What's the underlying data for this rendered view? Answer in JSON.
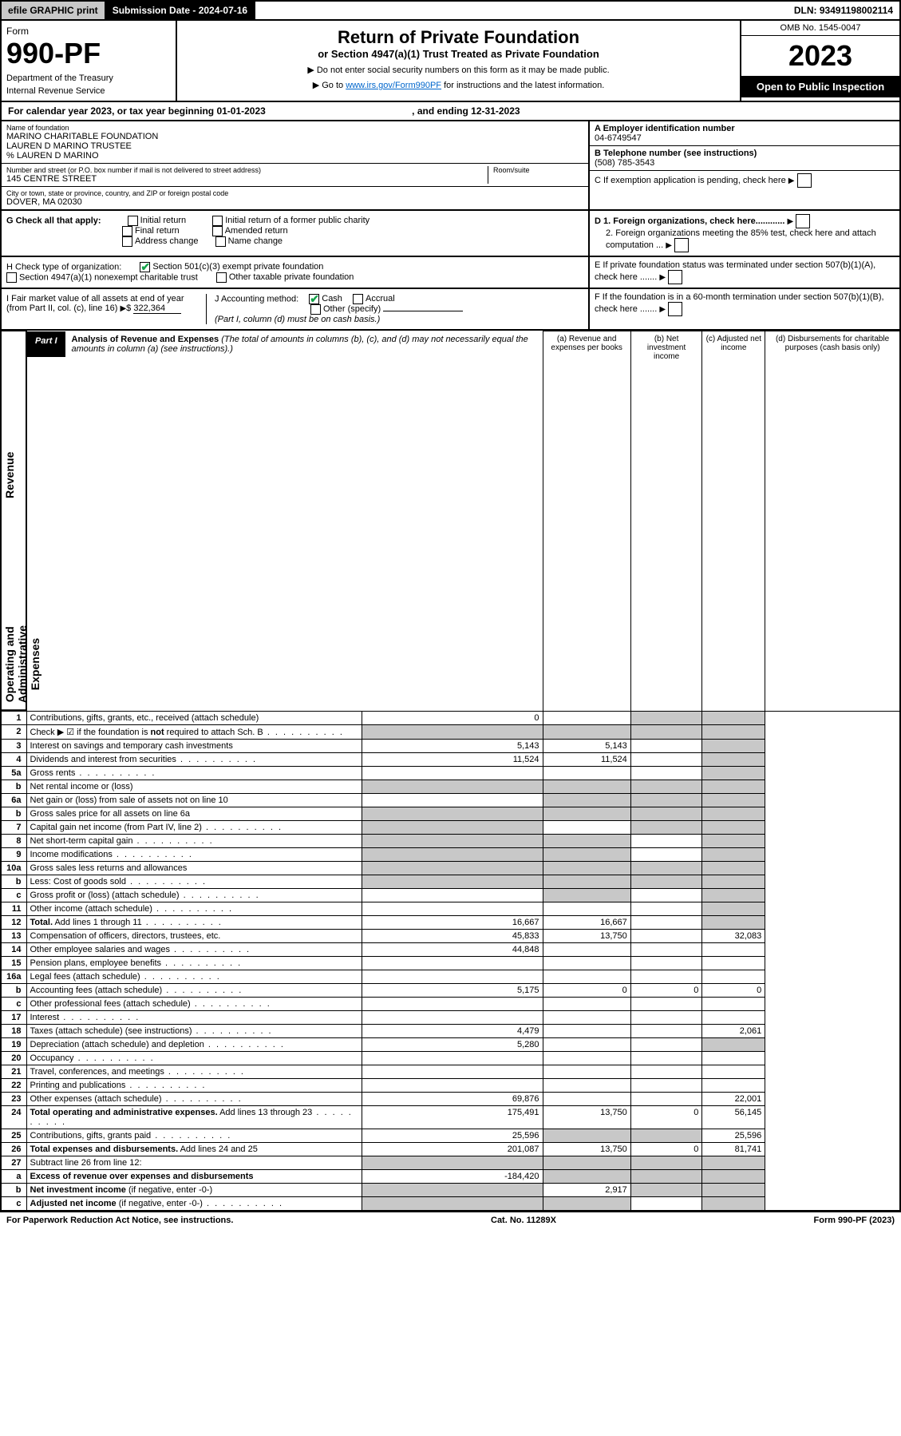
{
  "topbar": {
    "efile": "efile GRAPHIC print",
    "subdate_label": "Submission Date - 2024-07-16",
    "dln": "DLN: 93491198002114"
  },
  "header": {
    "form": "Form",
    "formno": "990-PF",
    "dept": "Department of the Treasury",
    "irs": "Internal Revenue Service",
    "title": "Return of Private Foundation",
    "subtitle": "or Section 4947(a)(1) Trust Treated as Private Foundation",
    "note1": "▶ Do not enter social security numbers on this form as it may be made public.",
    "note2_pre": "▶ Go to ",
    "note2_link": "www.irs.gov/Form990PF",
    "note2_post": " for instructions and the latest information.",
    "omb": "OMB No. 1545-0047",
    "year": "2023",
    "inspect": "Open to Public Inspection"
  },
  "cal": {
    "text": "For calendar year 2023, or tax year beginning 01-01-2023",
    "ending": ", and ending 12-31-2023"
  },
  "info": {
    "name_label": "Name of foundation",
    "name1": "MARINO CHARITABLE FOUNDATION",
    "name2": "LAUREN D MARINO TRUSTEE",
    "name3": "% LAUREN D MARINO",
    "addr_label": "Number and street (or P.O. box number if mail is not delivered to street address)",
    "room_label": "Room/suite",
    "addr": "145 CENTRE STREET",
    "city_label": "City or town, state or province, country, and ZIP or foreign postal code",
    "city": "DOVER, MA  02030",
    "ein_label": "A Employer identification number",
    "ein": "04-6749547",
    "phone_label": "B Telephone number (see instructions)",
    "phone": "(508) 785-3543",
    "c": "C If exemption application is pending, check here",
    "d1": "D 1. Foreign organizations, check here............",
    "d2": "2. Foreign organizations meeting the 85% test, check here and attach computation ...",
    "e": "E  If private foundation status was terminated under section 507(b)(1)(A), check here .......",
    "f": "F  If the foundation is in a 60-month termination under section 507(b)(1)(B), check here .......",
    "g": "G Check all that apply:",
    "g_initial": "Initial return",
    "g_initial_former": "Initial return of a former public charity",
    "g_final": "Final return",
    "g_amended": "Amended return",
    "g_address": "Address change",
    "g_name": "Name change",
    "h": "H Check type of organization:",
    "h_501c3": "Section 501(c)(3) exempt private foundation",
    "h_4947": "Section 4947(a)(1) nonexempt charitable trust",
    "h_other": "Other taxable private foundation",
    "i_label": "I Fair market value of all assets at end of year (from Part II, col. (c), line 16)",
    "i_val": "322,364",
    "j": "J Accounting method:",
    "j_cash": "Cash",
    "j_accrual": "Accrual",
    "j_other": "Other (specify)",
    "j_note": "(Part I, column (d) must be on cash basis.)"
  },
  "part1": {
    "label": "Part I",
    "title": "Analysis of Revenue and Expenses",
    "desc": "(The total of amounts in columns (b), (c), and (d) may not necessarily equal the amounts in column (a) (see instructions).)",
    "col_a": "(a) Revenue and expenses per books",
    "col_b": "(b) Net investment income",
    "col_c": "(c) Adjusted net income",
    "col_d": "(d) Disbursements for charitable purposes (cash basis only)",
    "side_rev": "Revenue",
    "side_exp": "Operating and Administrative Expenses"
  },
  "rows": [
    {
      "n": "1",
      "d": "shade",
      "a": "0",
      "b": "",
      "c": "shade"
    },
    {
      "n": "2",
      "d": "shade",
      "dots": true,
      "a": "shade",
      "b": "shade",
      "c": "shade"
    },
    {
      "n": "3",
      "d": "shade",
      "a": "5,143",
      "b": "5,143",
      "c": ""
    },
    {
      "n": "4",
      "d": "shade",
      "dots": true,
      "a": "11,524",
      "b": "11,524",
      "c": ""
    },
    {
      "n": "5a",
      "d": "shade",
      "dots": true,
      "a": "",
      "b": "",
      "c": ""
    },
    {
      "n": "b",
      "d": "shade",
      "a": "shade",
      "b": "shade",
      "c": "shade"
    },
    {
      "n": "6a",
      "d": "shade",
      "a": "",
      "b": "shade",
      "c": "shade"
    },
    {
      "n": "b",
      "d": "shade",
      "a": "shade",
      "b": "shade",
      "c": "shade"
    },
    {
      "n": "7",
      "d": "shade",
      "dots": true,
      "a": "shade",
      "b": "",
      "c": "shade"
    },
    {
      "n": "8",
      "d": "shade",
      "dots": true,
      "a": "shade",
      "b": "shade",
      "c": ""
    },
    {
      "n": "9",
      "d": "shade",
      "dots": true,
      "a": "shade",
      "b": "shade",
      "c": ""
    },
    {
      "n": "10a",
      "d": "shade",
      "a": "shade",
      "b": "shade",
      "c": "shade"
    },
    {
      "n": "b",
      "d": "shade",
      "dots": true,
      "a": "shade",
      "b": "shade",
      "c": "shade"
    },
    {
      "n": "c",
      "d": "shade",
      "dots": true,
      "a": "",
      "b": "shade",
      "c": ""
    },
    {
      "n": "11",
      "d": "shade",
      "dots": true,
      "a": "",
      "b": "",
      "c": ""
    },
    {
      "n": "12",
      "d": "shade",
      "dots": true,
      "bold": true,
      "a": "16,667",
      "b": "16,667",
      "c": ""
    },
    {
      "n": "13",
      "d": "32,083",
      "a": "45,833",
      "b": "13,750",
      "c": ""
    },
    {
      "n": "14",
      "d": "",
      "dots": true,
      "a": "44,848",
      "b": "",
      "c": ""
    },
    {
      "n": "15",
      "d": "",
      "dots": true,
      "a": "",
      "b": "",
      "c": ""
    },
    {
      "n": "16a",
      "d": "",
      "dots": true,
      "a": "",
      "b": "",
      "c": ""
    },
    {
      "n": "b",
      "d": "0",
      "dots": true,
      "a": "5,175",
      "b": "0",
      "c": "0"
    },
    {
      "n": "c",
      "d": "",
      "dots": true,
      "a": "",
      "b": "",
      "c": ""
    },
    {
      "n": "17",
      "d": "",
      "dots": true,
      "a": "",
      "b": "",
      "c": ""
    },
    {
      "n": "18",
      "d": "2,061",
      "dots": true,
      "a": "4,479",
      "b": "",
      "c": ""
    },
    {
      "n": "19",
      "d": "shade",
      "dots": true,
      "a": "5,280",
      "b": "",
      "c": ""
    },
    {
      "n": "20",
      "d": "",
      "dots": true,
      "a": "",
      "b": "",
      "c": ""
    },
    {
      "n": "21",
      "d": "",
      "dots": true,
      "a": "",
      "b": "",
      "c": ""
    },
    {
      "n": "22",
      "d": "",
      "dots": true,
      "a": "",
      "b": "",
      "c": ""
    },
    {
      "n": "23",
      "d": "22,001",
      "dots": true,
      "a": "69,876",
      "b": "",
      "c": ""
    },
    {
      "n": "24",
      "d": "56,145",
      "dots": true,
      "bold": true,
      "a": "175,491",
      "b": "13,750",
      "c": "0"
    },
    {
      "n": "25",
      "d": "25,596",
      "dots": true,
      "a": "25,596",
      "b": "shade",
      "c": "shade"
    },
    {
      "n": "26",
      "d": "81,741",
      "bold": true,
      "a": "201,087",
      "b": "13,750",
      "c": "0"
    },
    {
      "n": "27",
      "d": "shade",
      "a": "shade",
      "b": "shade",
      "c": "shade"
    },
    {
      "n": "a",
      "d": "shade",
      "bold": true,
      "a": "-184,420",
      "b": "shade",
      "c": "shade"
    },
    {
      "n": "b",
      "d": "shade",
      "bold": true,
      "a": "shade",
      "b": "2,917",
      "c": "shade"
    },
    {
      "n": "c",
      "d": "shade",
      "dots": true,
      "bold": true,
      "a": "shade",
      "b": "shade",
      "c": ""
    }
  ],
  "footer": {
    "left": "For Paperwork Reduction Act Notice, see instructions.",
    "mid": "Cat. No. 11289X",
    "right": "Form 990-PF (2023)"
  }
}
